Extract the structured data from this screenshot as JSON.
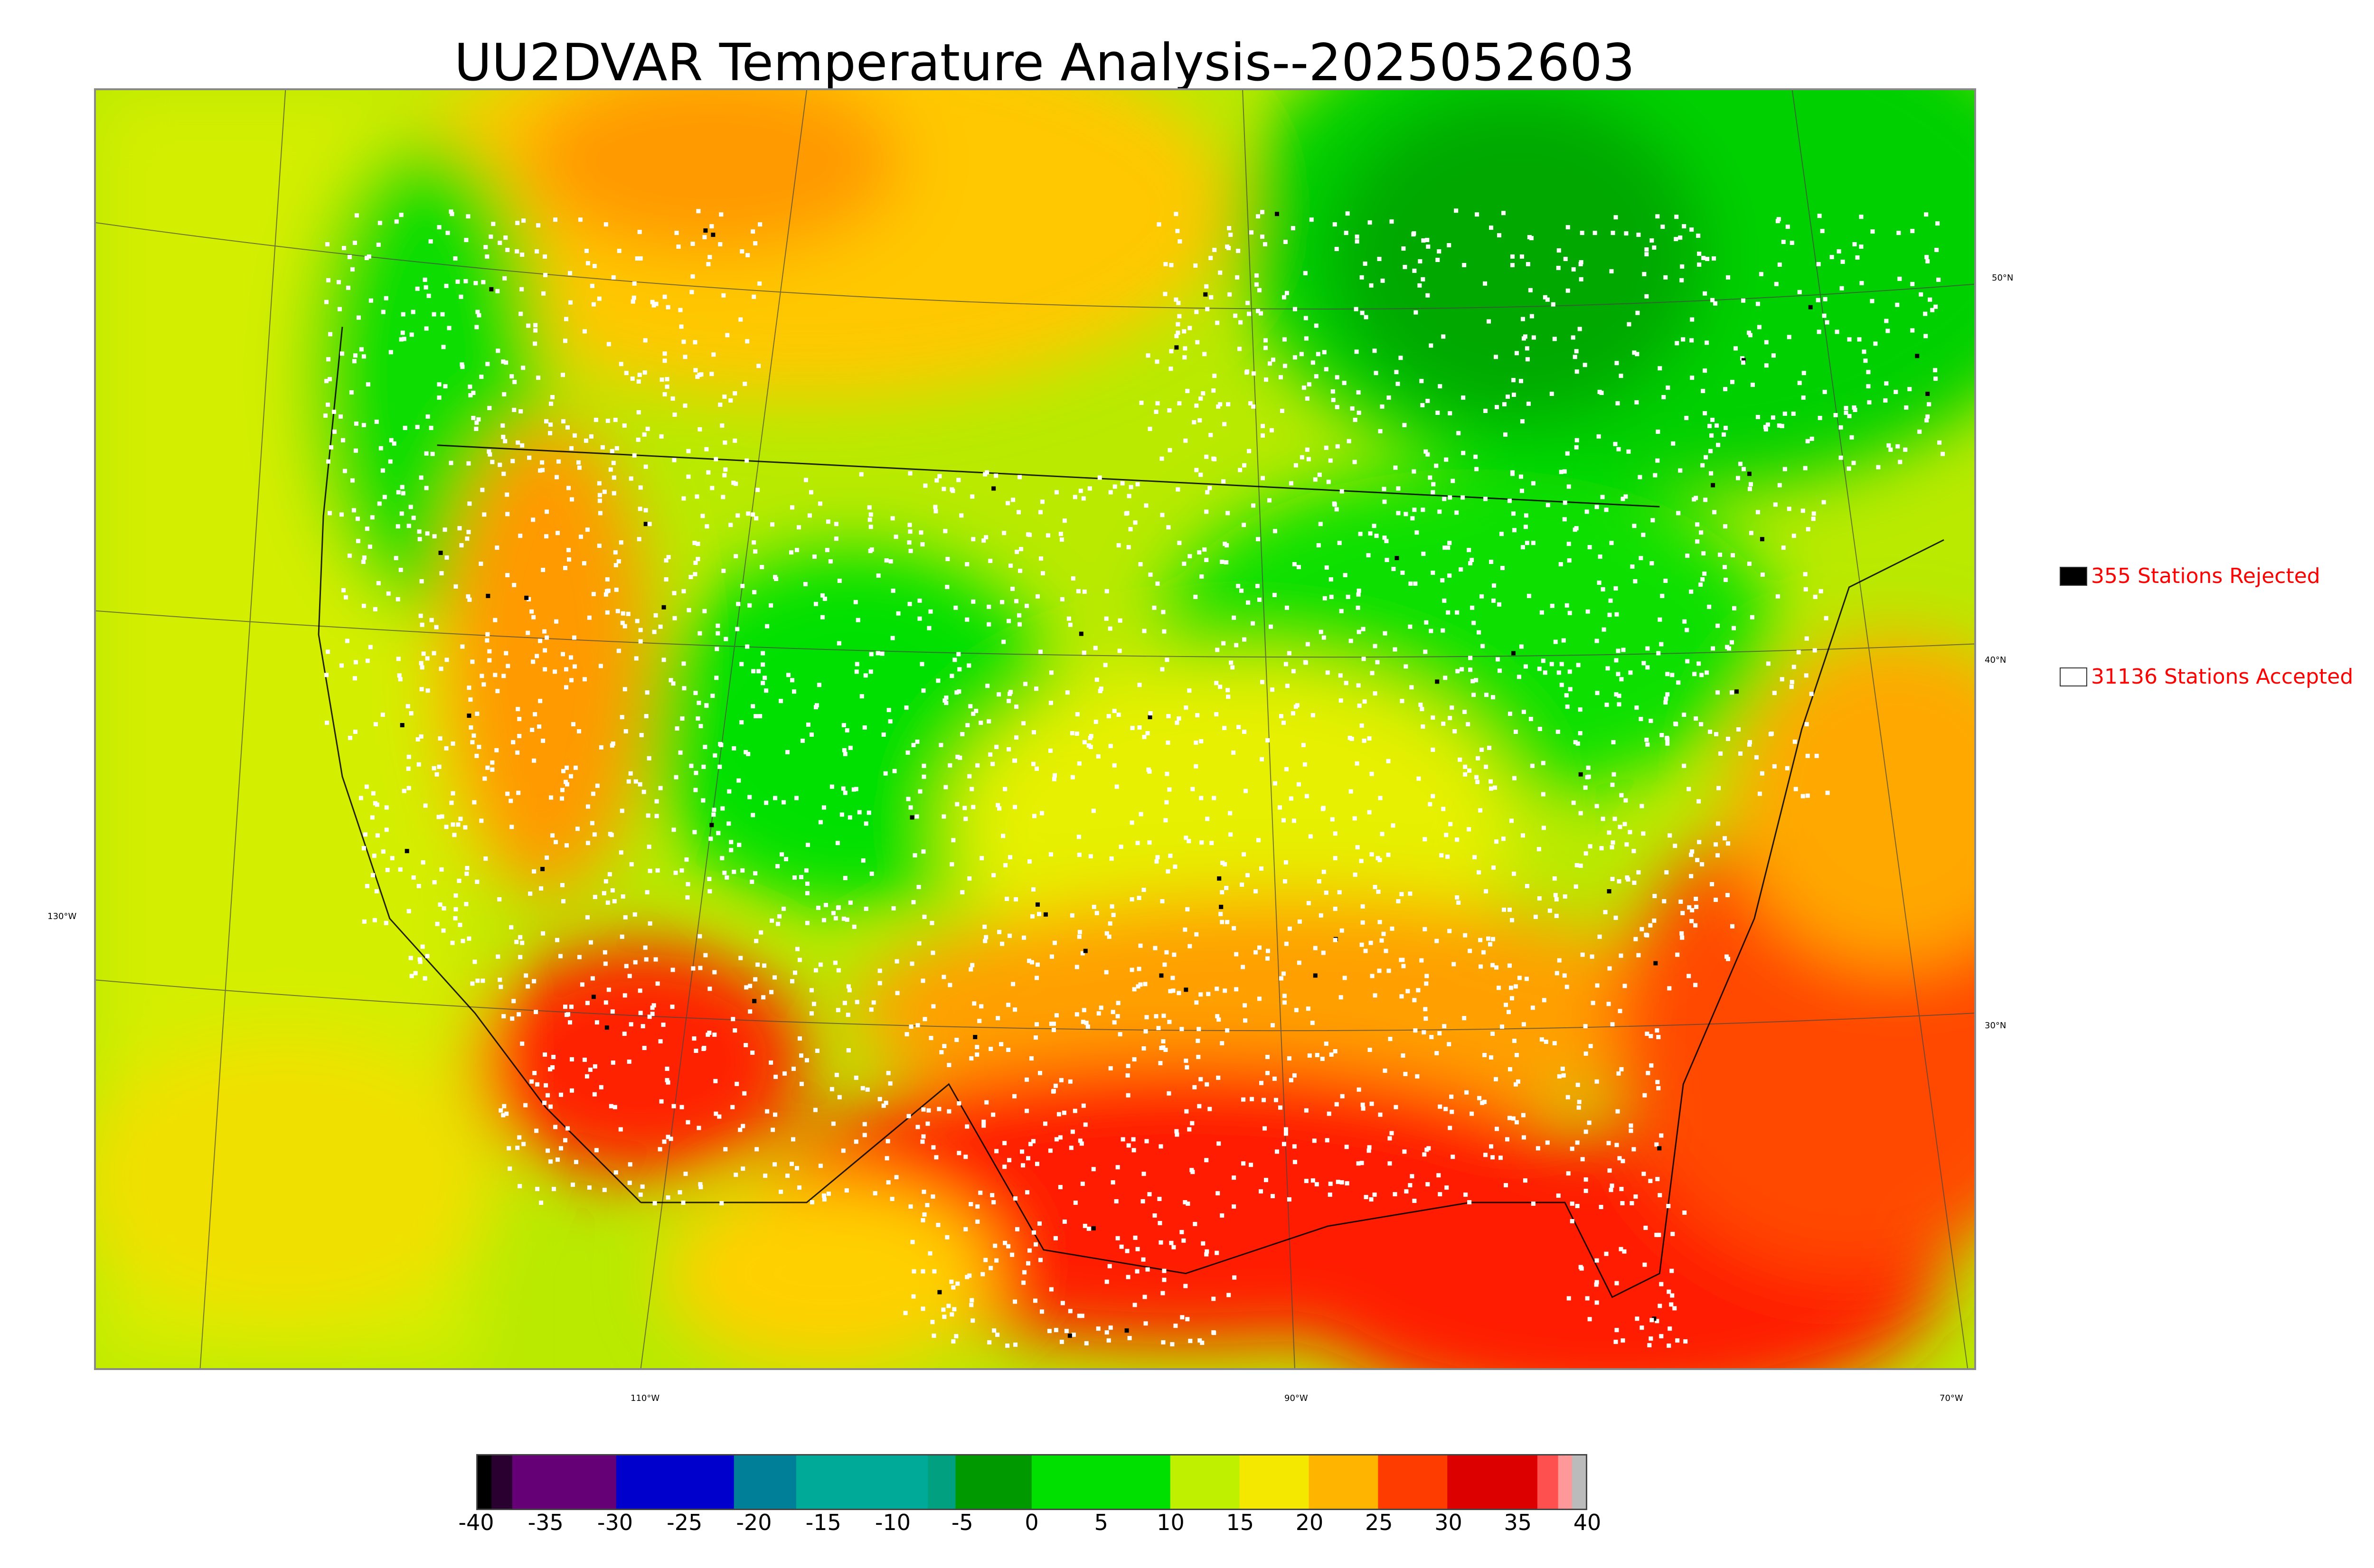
{
  "title": "UU2DVAR Temperature Analysis--2025052603",
  "map": {
    "region": "CONUS",
    "latitude_labels": [
      "50°N",
      "40°N",
      "30°N"
    ],
    "longitude_labels": [
      "130°W",
      "110°W",
      "90°W",
      "70°W"
    ],
    "colors": {
      "cold_green": "#00a800",
      "green": "#00e000",
      "yellow_green": "#c8f000",
      "yellow": "#ffdc00",
      "orange": "#ff9600",
      "red": "#ff1a00",
      "deep_red": "#e00000"
    }
  },
  "legend": {
    "rejected": {
      "label": "355 Stations Rejected",
      "swatch_color": "#000000"
    },
    "accepted": {
      "label": "31136 Stations Accepted",
      "swatch_color": "#ffffff"
    }
  },
  "colorbar": {
    "min": -40,
    "max": 40,
    "tick_labels": [
      "-40",
      "-35",
      "-30",
      "-25",
      "-20",
      "-15",
      "-10",
      "-5",
      "0",
      "5",
      "10",
      "15",
      "20",
      "25",
      "30",
      "35",
      "40"
    ],
    "segments": [
      {
        "from": -40,
        "to": -39,
        "color": "#000000"
      },
      {
        "from": -39,
        "to": -37.5,
        "color": "#2a0030"
      },
      {
        "from": -37.5,
        "to": -30,
        "color": "#660077"
      },
      {
        "from": -30,
        "to": -21.5,
        "color": "#0000cc"
      },
      {
        "from": -21.5,
        "to": -17,
        "color": "#007f99"
      },
      {
        "from": -17,
        "to": -7.5,
        "color": "#00aa99"
      },
      {
        "from": -7.5,
        "to": -5.5,
        "color": "#00a080"
      },
      {
        "from": -5.5,
        "to": 0,
        "color": "#009a00"
      },
      {
        "from": 0,
        "to": 10,
        "color": "#00e000"
      },
      {
        "from": 10,
        "to": 15,
        "color": "#bff000"
      },
      {
        "from": 15,
        "to": 20,
        "color": "#f5e800"
      },
      {
        "from": 20,
        "to": 25,
        "color": "#ffb400"
      },
      {
        "from": 25,
        "to": 30,
        "color": "#ff3c00"
      },
      {
        "from": 30,
        "to": 36.5,
        "color": "#dd0000"
      },
      {
        "from": 36.5,
        "to": 38,
        "color": "#ff5050"
      },
      {
        "from": 38,
        "to": 39,
        "color": "#ff9999"
      },
      {
        "from": 39,
        "to": 40,
        "color": "#bbbbbb"
      }
    ]
  }
}
